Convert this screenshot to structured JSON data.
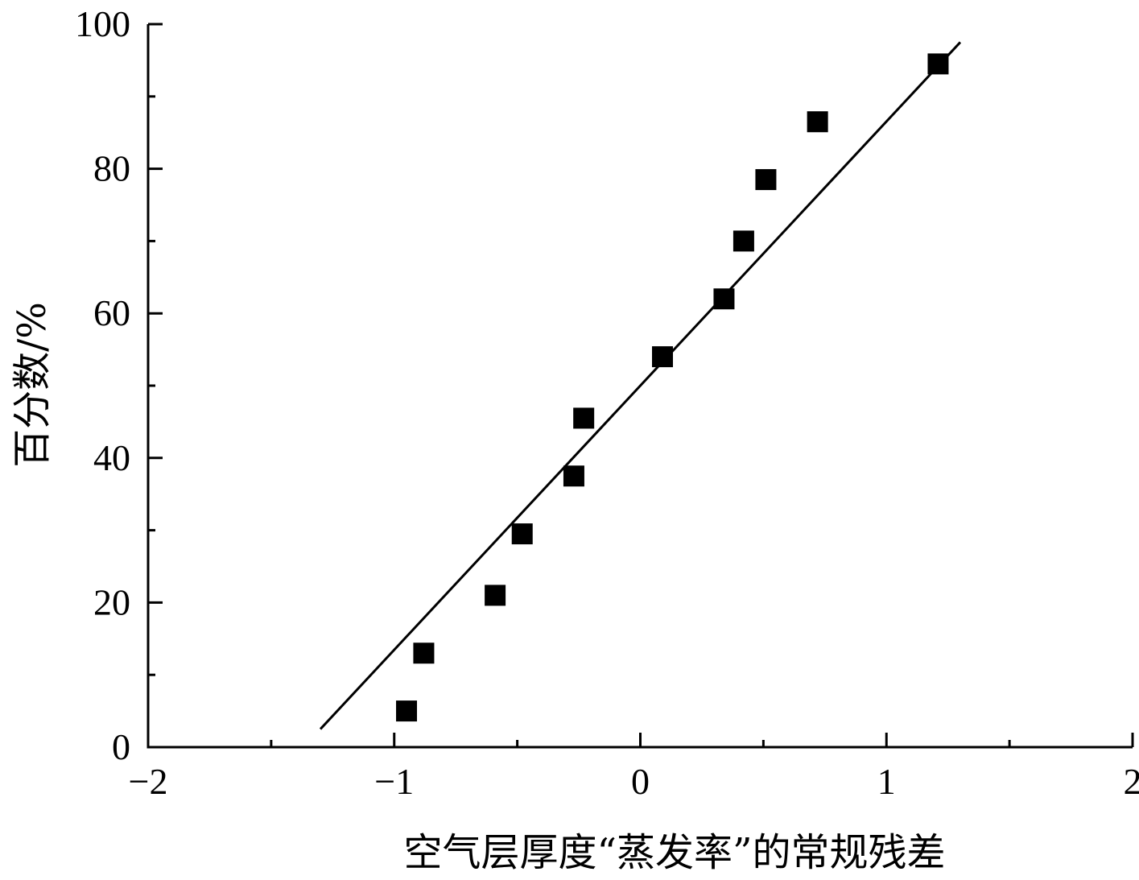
{
  "chart_data": {
    "type": "scatter",
    "title": "",
    "xlabel": "空气层厚度“蒸发率”的常规残差",
    "ylabel": "百分数/%",
    "xlim": [
      -2,
      2
    ],
    "ylim": [
      0,
      100
    ],
    "x_ticks": [
      "−2",
      "−1",
      "0",
      "1",
      "2"
    ],
    "y_ticks": [
      "0",
      "20",
      "40",
      "60",
      "80",
      "100"
    ],
    "x_minor_step": 0.5,
    "y_minor_step": 10,
    "grid": false,
    "marker": "square",
    "marker_color": "#000000",
    "points": [
      {
        "x": -0.95,
        "y": 5
      },
      {
        "x": -0.88,
        "y": 13
      },
      {
        "x": -0.59,
        "y": 21
      },
      {
        "x": -0.48,
        "y": 29.5
      },
      {
        "x": -0.27,
        "y": 37.5
      },
      {
        "x": -0.23,
        "y": 45.5
      },
      {
        "x": 0.09,
        "y": 54
      },
      {
        "x": 0.34,
        "y": 62
      },
      {
        "x": 0.42,
        "y": 70
      },
      {
        "x": 0.51,
        "y": 78.5
      },
      {
        "x": 0.72,
        "y": 86.5
      },
      {
        "x": 1.21,
        "y": 94.5
      }
    ],
    "fit_line": {
      "x": [
        -1.3,
        1.3
      ],
      "y": [
        2.5,
        97.5
      ]
    }
  }
}
